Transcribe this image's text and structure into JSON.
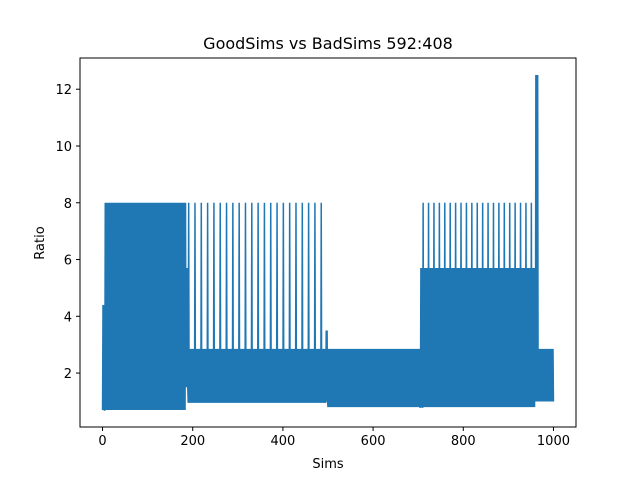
{
  "chart_data": {
    "type": "line",
    "title": "GoodSims vs BadSims 592:408",
    "xlabel": "Sims",
    "ylabel": "Ratio",
    "xlim": [
      -50,
      1050
    ],
    "ylim": [
      0.1,
      13.1
    ],
    "xticks": [
      0,
      200,
      400,
      600,
      800,
      1000
    ],
    "yticks": [
      2,
      4,
      6,
      8,
      10,
      12
    ],
    "grid": false,
    "legend": "none",
    "series_color": "#1f77b4",
    "segments": [
      {
        "x_start": 0,
        "x_end": 5,
        "low": 0.7,
        "high": 4.4
      },
      {
        "x_start": 5,
        "x_end": 185,
        "low": 0.7,
        "high": 8.0
      },
      {
        "x_start": 185,
        "x_end": 190,
        "low": 1.5,
        "high": 5.7
      },
      {
        "x_start": 190,
        "x_end": 495,
        "low": 0.95,
        "high": 2.85,
        "peak": 8.0,
        "peak_every": 7
      },
      {
        "x_start": 495,
        "x_end": 500,
        "low": 1.0,
        "high": 3.5
      },
      {
        "x_start": 500,
        "x_end": 705,
        "low": 0.8,
        "high": 2.85
      },
      {
        "x_start": 705,
        "x_end": 710,
        "low": 0.8,
        "high": 5.7
      },
      {
        "x_start": 710,
        "x_end": 960,
        "low": 0.8,
        "high": 5.7,
        "peak": 8.0,
        "peak_every": 6
      },
      {
        "x_start": 960,
        "x_end": 966,
        "low": 1.0,
        "high": 12.5
      },
      {
        "x_start": 966,
        "x_end": 1000,
        "low": 1.0,
        "high": 2.85,
        "peak": 2.85,
        "peak_every": 5
      }
    ]
  }
}
